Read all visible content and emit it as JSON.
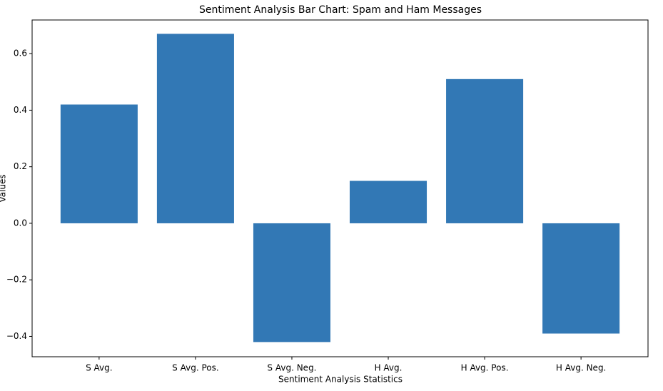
{
  "chart_data": {
    "type": "bar",
    "title": "Sentiment Analysis Bar Chart: Spam and Ham Messages",
    "x_label": "Sentiment Analysis Statistics",
    "y_label": "Values",
    "categories": [
      "S Avg.",
      "S Avg. Pos.",
      "S Avg. Neg.",
      "H Avg.",
      "H Avg. Pos.",
      "H Avg. Neg."
    ],
    "values": [
      0.42,
      0.67,
      -0.42,
      0.15,
      0.51,
      -0.39
    ],
    "color": "#3278b5",
    "ylim": [
      -0.472,
      0.719
    ],
    "yticks": [
      {
        "value": -0.4,
        "label": "−0.4"
      },
      {
        "value": -0.2,
        "label": "−0.2"
      },
      {
        "value": 0,
        "label": "0.0"
      },
      0.2,
      0.4,
      0.6
    ],
    "grid": false
  }
}
